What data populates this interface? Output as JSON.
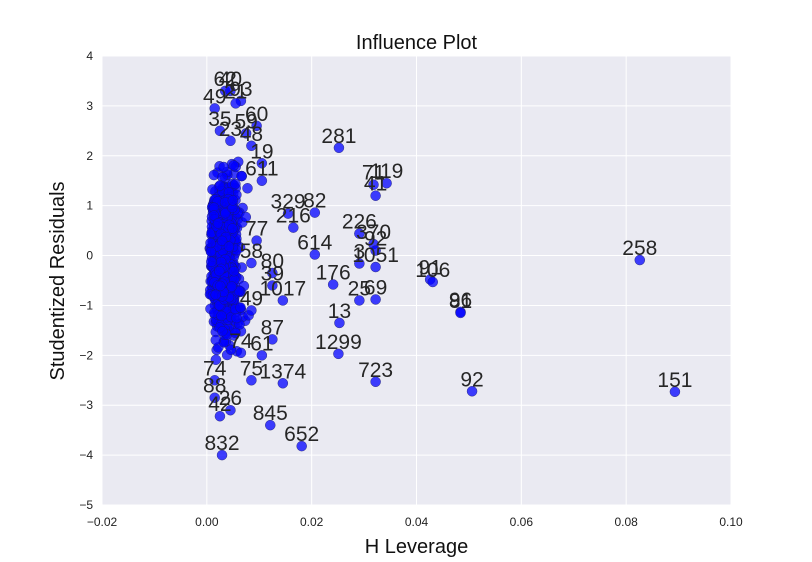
{
  "chart_data": {
    "type": "scatter",
    "title": "Influence Plot",
    "xlabel": "H Leverage",
    "ylabel": "Studentized Residuals",
    "xlim": [
      -0.02,
      0.1
    ],
    "ylim": [
      -5,
      4
    ],
    "xticks": [
      -0.02,
      0.0,
      0.02,
      0.04,
      0.06,
      0.08,
      0.1
    ],
    "xtick_labels": [
      "−0.02",
      "0.00",
      "0.02",
      "0.04",
      "0.06",
      "0.08",
      "0.10"
    ],
    "yticks": [
      -5,
      -4,
      -3,
      -2,
      -1,
      0,
      1,
      2,
      3,
      4
    ],
    "ytick_labels": [
      "−5",
      "−4",
      "−3",
      "−2",
      "−1",
      "0",
      "1",
      "2",
      "3",
      "4"
    ],
    "grid": true,
    "colors": {
      "background": "#eaeaf2",
      "grid": "#ffffff",
      "point": "#0000ff"
    },
    "labeled_points": [
      {
        "label": "258",
        "x": 0.0826,
        "y": -0.09
      },
      {
        "label": "151",
        "x": 0.0893,
        "y": -2.73
      },
      {
        "label": "92",
        "x": 0.0506,
        "y": -2.72
      },
      {
        "label": "281",
        "x": 0.0252,
        "y": 2.16
      },
      {
        "label": "723",
        "x": 0.0322,
        "y": -2.53
      },
      {
        "label": "652",
        "x": 0.0181,
        "y": -3.82
      },
      {
        "label": "832",
        "x": 0.0029,
        "y": -4.0
      },
      {
        "label": "1299",
        "x": 0.0251,
        "y": -1.97
      },
      {
        "label": "13",
        "x": 0.0253,
        "y": -1.35
      },
      {
        "label": "96",
        "x": 0.0484,
        "y": -1.13
      },
      {
        "label": "81",
        "x": 0.0484,
        "y": -1.15
      },
      {
        "label": "91",
        "x": 0.0426,
        "y": -0.48
      },
      {
        "label": "106",
        "x": 0.0431,
        "y": -0.53
      },
      {
        "label": "614",
        "x": 0.0206,
        "y": 0.02
      },
      {
        "label": "226",
        "x": 0.0291,
        "y": 0.44
      },
      {
        "label": "71",
        "x": 0.0318,
        "y": 1.42
      },
      {
        "label": "119",
        "x": 0.0343,
        "y": 1.45
      },
      {
        "label": "41",
        "x": 0.0322,
        "y": 1.2
      },
      {
        "label": "25",
        "x": 0.0291,
        "y": -0.9
      },
      {
        "label": "69",
        "x": 0.0322,
        "y": -0.88
      },
      {
        "label": "1051",
        "x": 0.0322,
        "y": -0.23
      },
      {
        "label": "176",
        "x": 0.0241,
        "y": -0.58
      },
      {
        "label": "3",
        "x": 0.0291,
        "y": -0.16
      },
      {
        "label": "370",
        "x": 0.0318,
        "y": 0.23
      },
      {
        "label": "92",
        "x": 0.0322,
        "y": 0.1
      },
      {
        "label": "845",
        "x": 0.0121,
        "y": -3.4
      },
      {
        "label": "1374",
        "x": 0.0145,
        "y": -2.56
      },
      {
        "label": "42",
        "x": 0.0025,
        "y": -3.22
      },
      {
        "label": "216",
        "x": 0.0165,
        "y": 0.56
      },
      {
        "label": "329",
        "x": 0.0155,
        "y": 0.84
      },
      {
        "label": "82",
        "x": 0.0206,
        "y": 0.86
      },
      {
        "label": "1017",
        "x": 0.0145,
        "y": -0.9
      },
      {
        "label": "39",
        "x": 0.0125,
        "y": -0.6
      },
      {
        "label": "80",
        "x": 0.0125,
        "y": -0.35
      },
      {
        "label": "87",
        "x": 0.0125,
        "y": -1.68
      },
      {
        "label": "61",
        "x": 0.0105,
        "y": -2.0
      },
      {
        "label": "75",
        "x": 0.0085,
        "y": -2.5
      },
      {
        "label": "611",
        "x": 0.0105,
        "y": 1.5
      },
      {
        "label": "19",
        "x": 0.0105,
        "y": 1.85
      },
      {
        "label": "48",
        "x": 0.0085,
        "y": 2.2
      },
      {
        "label": "60",
        "x": 0.0095,
        "y": 2.6
      },
      {
        "label": "93",
        "x": 0.0065,
        "y": 3.1
      },
      {
        "label": "59",
        "x": 0.0075,
        "y": 2.45
      },
      {
        "label": "62",
        "x": 0.0035,
        "y": 3.3
      },
      {
        "label": "40",
        "x": 0.0045,
        "y": 3.3
      },
      {
        "label": "21",
        "x": 0.0055,
        "y": 3.05
      },
      {
        "label": "49",
        "x": 0.0015,
        "y": 2.95
      },
      {
        "label": "35",
        "x": 0.0025,
        "y": 2.5
      },
      {
        "label": "23",
        "x": 0.0045,
        "y": 2.3
      },
      {
        "label": "74",
        "x": 0.0015,
        "y": -2.5
      },
      {
        "label": "88",
        "x": 0.0015,
        "y": -2.85
      },
      {
        "label": "26",
        "x": 0.0045,
        "y": -3.1
      },
      {
        "label": "74",
        "x": 0.0065,
        "y": -1.95
      },
      {
        "label": "49",
        "x": 0.0085,
        "y": -1.1
      },
      {
        "label": "77",
        "x": 0.0095,
        "y": 0.3
      },
      {
        "label": "58",
        "x": 0.0085,
        "y": -0.15
      }
    ]
  }
}
